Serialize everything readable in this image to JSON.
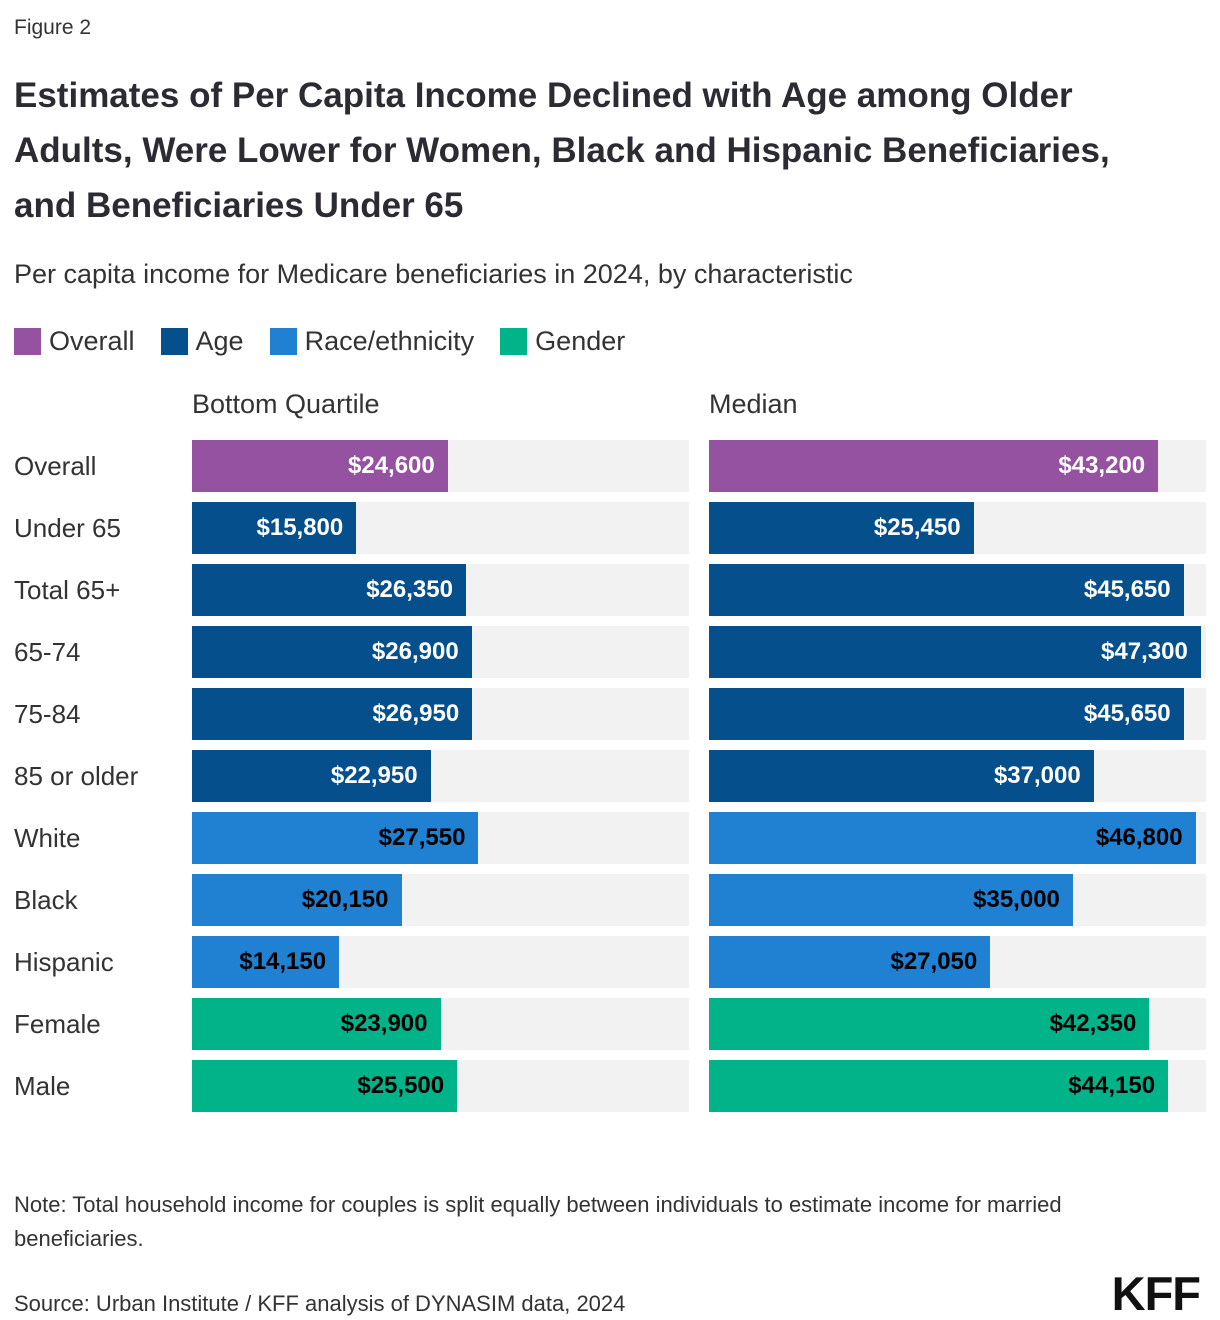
{
  "figure_label": "Figure 2",
  "title": "Estimates of Per Capita Income Declined with Age among Older Adults, Were Lower for Women, Black and Hispanic Beneficiaries, and Beneficiaries Under 65",
  "subtitle": "Per capita income for Medicare beneficiaries in 2024, by characteristic",
  "legend": [
    {
      "label": "Overall",
      "color": "#9452A0"
    },
    {
      "label": "Age",
      "color": "#05508C"
    },
    {
      "label": "Race/ethnicity",
      "color": "#2081D3"
    },
    {
      "label": "Gender",
      "color": "#00B388"
    }
  ],
  "chart_data": {
    "type": "bar",
    "orientation": "horizontal",
    "panels": [
      {
        "label": "Bottom Quartile"
      },
      {
        "label": "Median"
      }
    ],
    "axis_max": 47800,
    "track_color": "#F2F2F2",
    "grid": false,
    "legend_position": "top",
    "groups": {
      "Overall": {
        "color": "#9452A0",
        "value_text_color": "#FFFFFF"
      },
      "Age": {
        "color": "#05508C",
        "value_text_color": "#FFFFFF"
      },
      "Race/ethnicity": {
        "color": "#2081D3",
        "value_text_color": "#000000"
      },
      "Gender": {
        "color": "#00B388",
        "value_text_color": "#000000"
      }
    },
    "rows": [
      {
        "label": "Overall",
        "group": "Overall",
        "bottom_quartile": 24600,
        "median": 43200,
        "bottom_quartile_label": "$24,600",
        "median_label": "$43,200"
      },
      {
        "label": "Under 65",
        "group": "Age",
        "bottom_quartile": 15800,
        "median": 25450,
        "bottom_quartile_label": "$15,800",
        "median_label": "$25,450"
      },
      {
        "label": "Total 65+",
        "group": "Age",
        "bottom_quartile": 26350,
        "median": 45650,
        "bottom_quartile_label": "$26,350",
        "median_label": "$45,650"
      },
      {
        "label": "65-74",
        "group": "Age",
        "bottom_quartile": 26900,
        "median": 47300,
        "bottom_quartile_label": "$26,900",
        "median_label": "$47,300"
      },
      {
        "label": "75-84",
        "group": "Age",
        "bottom_quartile": 26950,
        "median": 45650,
        "bottom_quartile_label": "$26,950",
        "median_label": "$45,650"
      },
      {
        "label": "85 or older",
        "group": "Age",
        "bottom_quartile": 22950,
        "median": 37000,
        "bottom_quartile_label": "$22,950",
        "median_label": "$37,000"
      },
      {
        "label": "White",
        "group": "Race/ethnicity",
        "bottom_quartile": 27550,
        "median": 46800,
        "bottom_quartile_label": "$27,550",
        "median_label": "$46,800"
      },
      {
        "label": "Black",
        "group": "Race/ethnicity",
        "bottom_quartile": 20150,
        "median": 35000,
        "bottom_quartile_label": "$20,150",
        "median_label": "$35,000"
      },
      {
        "label": "Hispanic",
        "group": "Race/ethnicity",
        "bottom_quartile": 14150,
        "median": 27050,
        "bottom_quartile_label": "$14,150",
        "median_label": "$27,050"
      },
      {
        "label": "Female",
        "group": "Gender",
        "bottom_quartile": 23900,
        "median": 42350,
        "bottom_quartile_label": "$23,900",
        "median_label": "$42,350"
      },
      {
        "label": "Male",
        "group": "Gender",
        "bottom_quartile": 25500,
        "median": 44150,
        "bottom_quartile_label": "$25,500",
        "median_label": "$44,150"
      }
    ]
  },
  "note": "Note: Total household income for couples is split equally between individuals to estimate income for married beneficiaries.",
  "source": "Source: Urban Institute / KFF analysis of DYNASIM data, 2024",
  "logo_text": "KFF"
}
